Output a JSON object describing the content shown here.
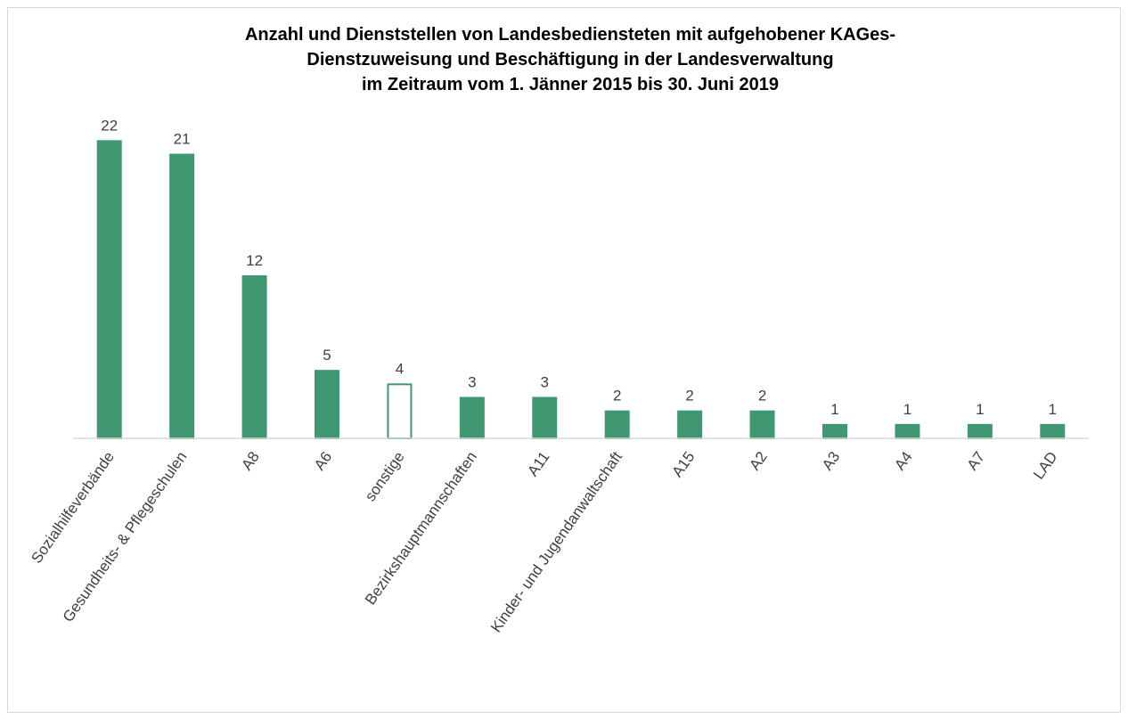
{
  "chart_data": {
    "type": "bar",
    "title": [
      "Anzahl und Dienststellen von Landesbediensteten mit aufgehobener KAGes-",
      "Dienstzuweisung und Beschäftigung in der Landesverwaltung",
      "im Zeitraum vom 1. Jänner 2015 bis 30. Juni 2019"
    ],
    "categories": [
      "Sozialhilfeverbände",
      "Gesundheits- & Pflegeschulen",
      "A8",
      "A6",
      "sonstige",
      "Bezirkshauptmannschaften",
      "A11",
      "Kinder- und Jugendanwaltschaft",
      "A15",
      "A2",
      "A3",
      "A4",
      "A7",
      "LAD"
    ],
    "values": [
      22,
      21,
      12,
      5,
      4,
      3,
      3,
      2,
      2,
      2,
      1,
      1,
      1,
      1
    ],
    "colors": [
      "#3f9872",
      "#3f9872",
      "#3f9872",
      "#3f9872",
      "#ffffff",
      "#3f9872",
      "#3f9872",
      "#3f9872",
      "#3f9872",
      "#3f9872",
      "#3f9872",
      "#3f9872",
      "#3f9872",
      "#3f9872"
    ],
    "edgecolor": "#3f9872",
    "ylim": [
      0,
      24
    ]
  }
}
